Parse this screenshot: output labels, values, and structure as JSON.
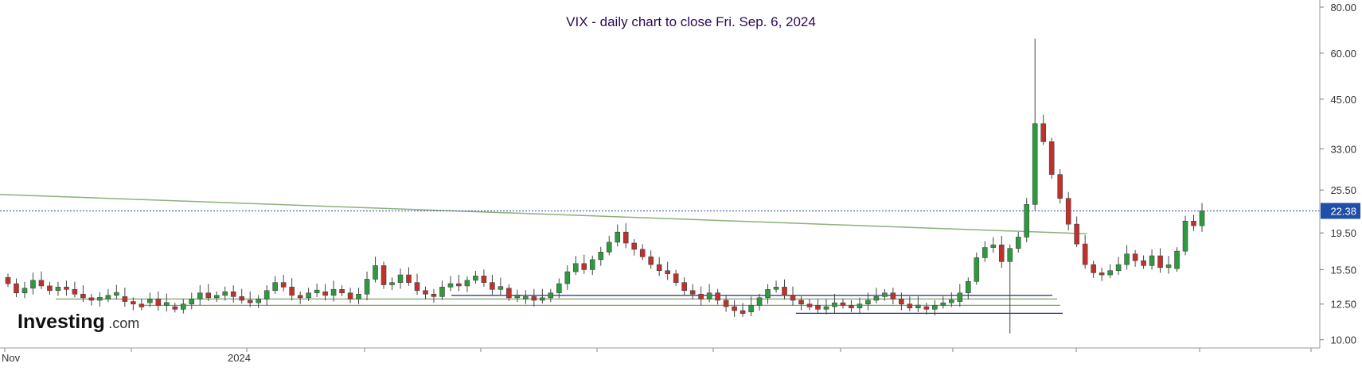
{
  "brand": {
    "main": "Investing",
    "dot_com": ".com"
  },
  "chart_data": {
    "type": "candlestick",
    "title": "VIX - daily chart to close Fri. Sep. 6, 2024",
    "y_scale": "log",
    "ylim": [
      9.5,
      82
    ],
    "y_ticks": [
      "80.00",
      "60.00",
      "45.00",
      "33.00",
      "25.50",
      "19.50",
      "15.50",
      "12.50",
      "10.00"
    ],
    "x_labels": [
      "Nov",
      "2024"
    ],
    "last_value": "22.38",
    "last_value_color": "#1f4fa8",
    "up_color": "#2e9a3e",
    "down_color": "#c0312b",
    "base_levels": [
      14.2,
      13.4,
      13.8,
      14.5,
      14.0,
      13.6,
      13.9,
      13.7,
      13.3,
      13.0,
      12.8,
      12.9,
      13.2,
      13.1,
      12.7,
      12.5,
      12.6,
      12.9,
      12.4,
      12.3,
      12.1,
      12.5,
      12.9,
      13.4,
      13.0,
      13.2,
      13.5,
      13.1,
      12.8,
      12.6,
      12.9,
      13.6,
      14.3,
      13.9,
      13.2,
      13.0,
      13.4,
      13.5,
      13.2,
      13.7,
      13.4,
      12.9,
      13.3,
      14.6,
      15.9,
      14.1,
      14.3,
      15.0,
      14.3,
      13.6,
      13.3,
      13.1,
      13.9,
      14.2,
      14.0,
      14.5,
      14.9,
      14.3,
      13.7,
      13.8,
      13.0,
      12.9,
      13.1,
      12.8,
      13.0,
      13.4,
      14.2,
      15.3,
      16.1,
      15.5,
      16.5,
      17.3,
      18.4,
      19.6,
      18.3,
      17.6,
      16.8,
      16.0,
      15.4,
      15.1,
      14.3,
      13.6,
      13.3,
      12.9,
      13.4,
      12.8,
      12.3,
      12.0,
      11.9,
      12.4,
      13.0,
      13.7,
      13.9,
      13.2,
      12.8,
      12.5,
      12.4,
      12.1,
      12.3,
      12.6,
      12.4,
      12.2,
      12.5,
      12.8,
      13.1,
      13.4,
      12.9,
      12.5,
      12.2,
      12.3,
      12.1,
      12.4,
      12.6,
      12.7,
      13.4,
      14.4,
      16.7,
      17.8,
      18.1,
      16.3,
      17.7,
      19.0,
      23.3,
      38.6,
      34.5,
      28.1,
      24.2,
      20.6,
      18.2,
      16.0,
      15.2,
      15.0,
      15.4,
      16.0,
      17.1,
      16.4,
      15.9,
      16.9,
      15.7,
      15.6,
      17.4,
      21.0,
      20.4,
      22.4
    ],
    "support_lines": [
      {
        "from": 12.9,
        "to": 12.9,
        "color": "#7fa36b"
      },
      {
        "from": 12.4,
        "to": 12.4,
        "color": "#7fa36b"
      },
      {
        "from": 13.2,
        "to": 13.2,
        "color": "#2a2a8a"
      },
      {
        "from": 11.8,
        "to": 11.8,
        "color": "#2a2a8a"
      }
    ],
    "trend_line": {
      "from": 24.8,
      "to": 19.4,
      "color": "#8cb07a"
    }
  }
}
